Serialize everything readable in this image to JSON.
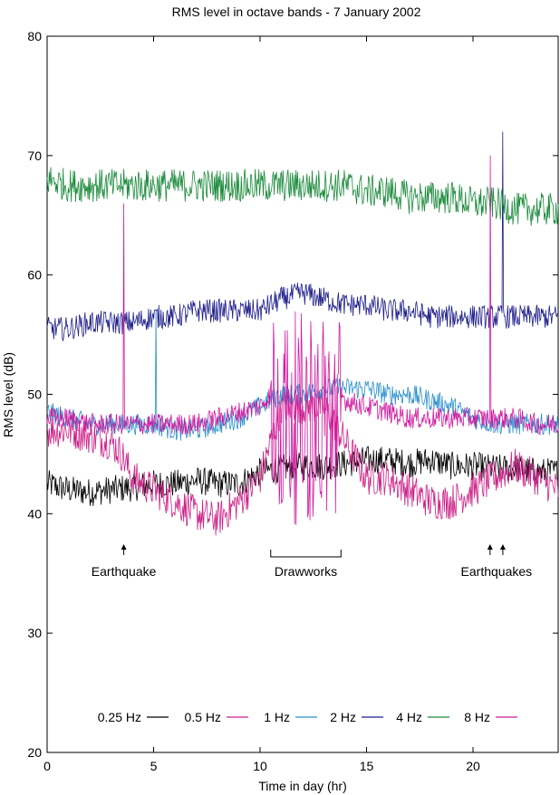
{
  "chart_data": {
    "type": "line",
    "title": "RMS level in octave bands - 7 January 2002",
    "xlabel": "Time in day (hr)",
    "ylabel": "RMS level (dB)",
    "xlim": [
      0,
      24
    ],
    "ylim": [
      20,
      80
    ],
    "xticks": [
      0,
      5,
      10,
      15,
      20
    ],
    "yticks": [
      20,
      30,
      40,
      50,
      60,
      70,
      80
    ],
    "grid": false,
    "legend_position": "bottom",
    "series": [
      {
        "name": "0.25 Hz",
        "color": "#000000",
        "x": [
          0,
          1,
          2,
          3,
          4,
          5,
          6,
          7,
          8,
          9,
          10,
          11,
          12,
          13,
          14,
          15,
          16,
          17,
          18,
          19,
          20,
          21,
          22,
          23,
          24
        ],
        "y": [
          42.5,
          42,
          41.8,
          42,
          42.2,
          42.5,
          42.5,
          42.8,
          42.5,
          42.5,
          43.5,
          43.8,
          44,
          44,
          44.2,
          44.5,
          44.5,
          44.2,
          44.5,
          44,
          44,
          43.8,
          43.8,
          43.5,
          43.5
        ],
        "noise": 1.2
      },
      {
        "name": "0.5 Hz",
        "color": "#cc2288",
        "x": [
          0,
          1,
          2,
          3,
          3.5,
          4,
          5,
          6,
          7,
          8,
          9,
          10,
          10.5,
          11,
          12,
          13,
          14,
          15,
          16,
          17,
          18,
          19,
          20,
          21,
          22,
          23,
          24
        ],
        "y": [
          47,
          47,
          46.5,
          46,
          45,
          43,
          42,
          41,
          40,
          39.5,
          41,
          43,
          46,
          49,
          49,
          49,
          46,
          43,
          43,
          42,
          41,
          41,
          42,
          43,
          44,
          43,
          42
        ],
        "noise": 1.5
      },
      {
        "name": "1 Hz",
        "color": "#2a8fcc",
        "x": [
          0,
          1,
          2,
          3,
          4,
          5,
          6,
          7,
          8,
          9,
          10,
          11,
          12,
          13,
          14,
          15,
          16,
          17,
          18,
          19,
          20,
          21,
          22,
          23,
          24
        ],
        "y": [
          48.5,
          48,
          47.5,
          47.5,
          47.5,
          47.5,
          47,
          47,
          47.5,
          48,
          49,
          50,
          50,
          50.5,
          50.5,
          50.5,
          50,
          50,
          49.5,
          49,
          48,
          47.5,
          47.5,
          47.5,
          47.5
        ],
        "noise": 0.9
      },
      {
        "name": "2 Hz",
        "color": "#1e1e8a",
        "x": [
          0,
          1,
          2,
          3,
          4,
          5,
          6,
          7,
          8,
          9,
          10,
          11,
          12,
          13,
          14,
          15,
          16,
          17,
          18,
          19,
          20,
          21,
          22,
          23,
          24
        ],
        "y": [
          55.5,
          55.5,
          56,
          56,
          56,
          56.5,
          56.5,
          57,
          57,
          57,
          57,
          58,
          58.5,
          58,
          57.5,
          57.5,
          57,
          57,
          56.5,
          56.5,
          56.5,
          56.5,
          56.5,
          56.5,
          56.5
        ],
        "noise": 1.0
      },
      {
        "name": "4 Hz",
        "color": "#1a8a3a",
        "x": [
          0,
          1,
          2,
          3,
          4,
          5,
          6,
          7,
          8,
          9,
          10,
          11,
          12,
          13,
          14,
          15,
          16,
          17,
          18,
          19,
          20,
          21,
          22,
          23,
          24
        ],
        "y": [
          68,
          67.5,
          67.5,
          67.5,
          67.5,
          67.5,
          67.5,
          67.5,
          67.5,
          67.5,
          67.5,
          67.5,
          67.5,
          67.5,
          67.5,
          67,
          67,
          66.5,
          66.5,
          66.5,
          66,
          66,
          65.5,
          65.5,
          65.5
        ],
        "noise": 1.4
      },
      {
        "name": "8 Hz",
        "color": "#d01aa0",
        "x": [
          0,
          1,
          2,
          3,
          4,
          5,
          6,
          7,
          8,
          9,
          10,
          10.5,
          11,
          12,
          13,
          13.8,
          14,
          15,
          16,
          17,
          18,
          19,
          20,
          21,
          22,
          23,
          24
        ],
        "y": [
          48,
          48,
          47.5,
          47.5,
          47.5,
          47.5,
          47.5,
          47.5,
          48,
          48.5,
          49,
          50,
          50,
          50,
          50,
          50,
          49.5,
          49,
          48.5,
          48,
          48,
          48,
          48,
          48,
          48,
          47.5,
          47.5
        ],
        "noise": 0.9
      }
    ],
    "spikes": [
      {
        "x": 3.6,
        "series": "8 Hz",
        "peak": 66
      },
      {
        "x": 5.1,
        "series": "1 Hz",
        "peak": 57
      },
      {
        "x": 20.8,
        "series": "8 Hz",
        "peak": 70
      },
      {
        "x": 21.4,
        "series": "2 Hz",
        "peak": 72
      }
    ],
    "burst": {
      "series": "8 Hz",
      "x_start": 10.5,
      "x_end": 13.8,
      "low": 39,
      "high": 57
    },
    "annotations": [
      {
        "text": "Earthquake",
        "x": 3.6,
        "arrows": [
          3.6
        ]
      },
      {
        "text": "Drawworks",
        "x": 12.15,
        "bracket": [
          10.5,
          13.8
        ]
      },
      {
        "text": "Earthquakes",
        "x": 21.1,
        "arrows": [
          20.8,
          21.4
        ]
      }
    ]
  }
}
